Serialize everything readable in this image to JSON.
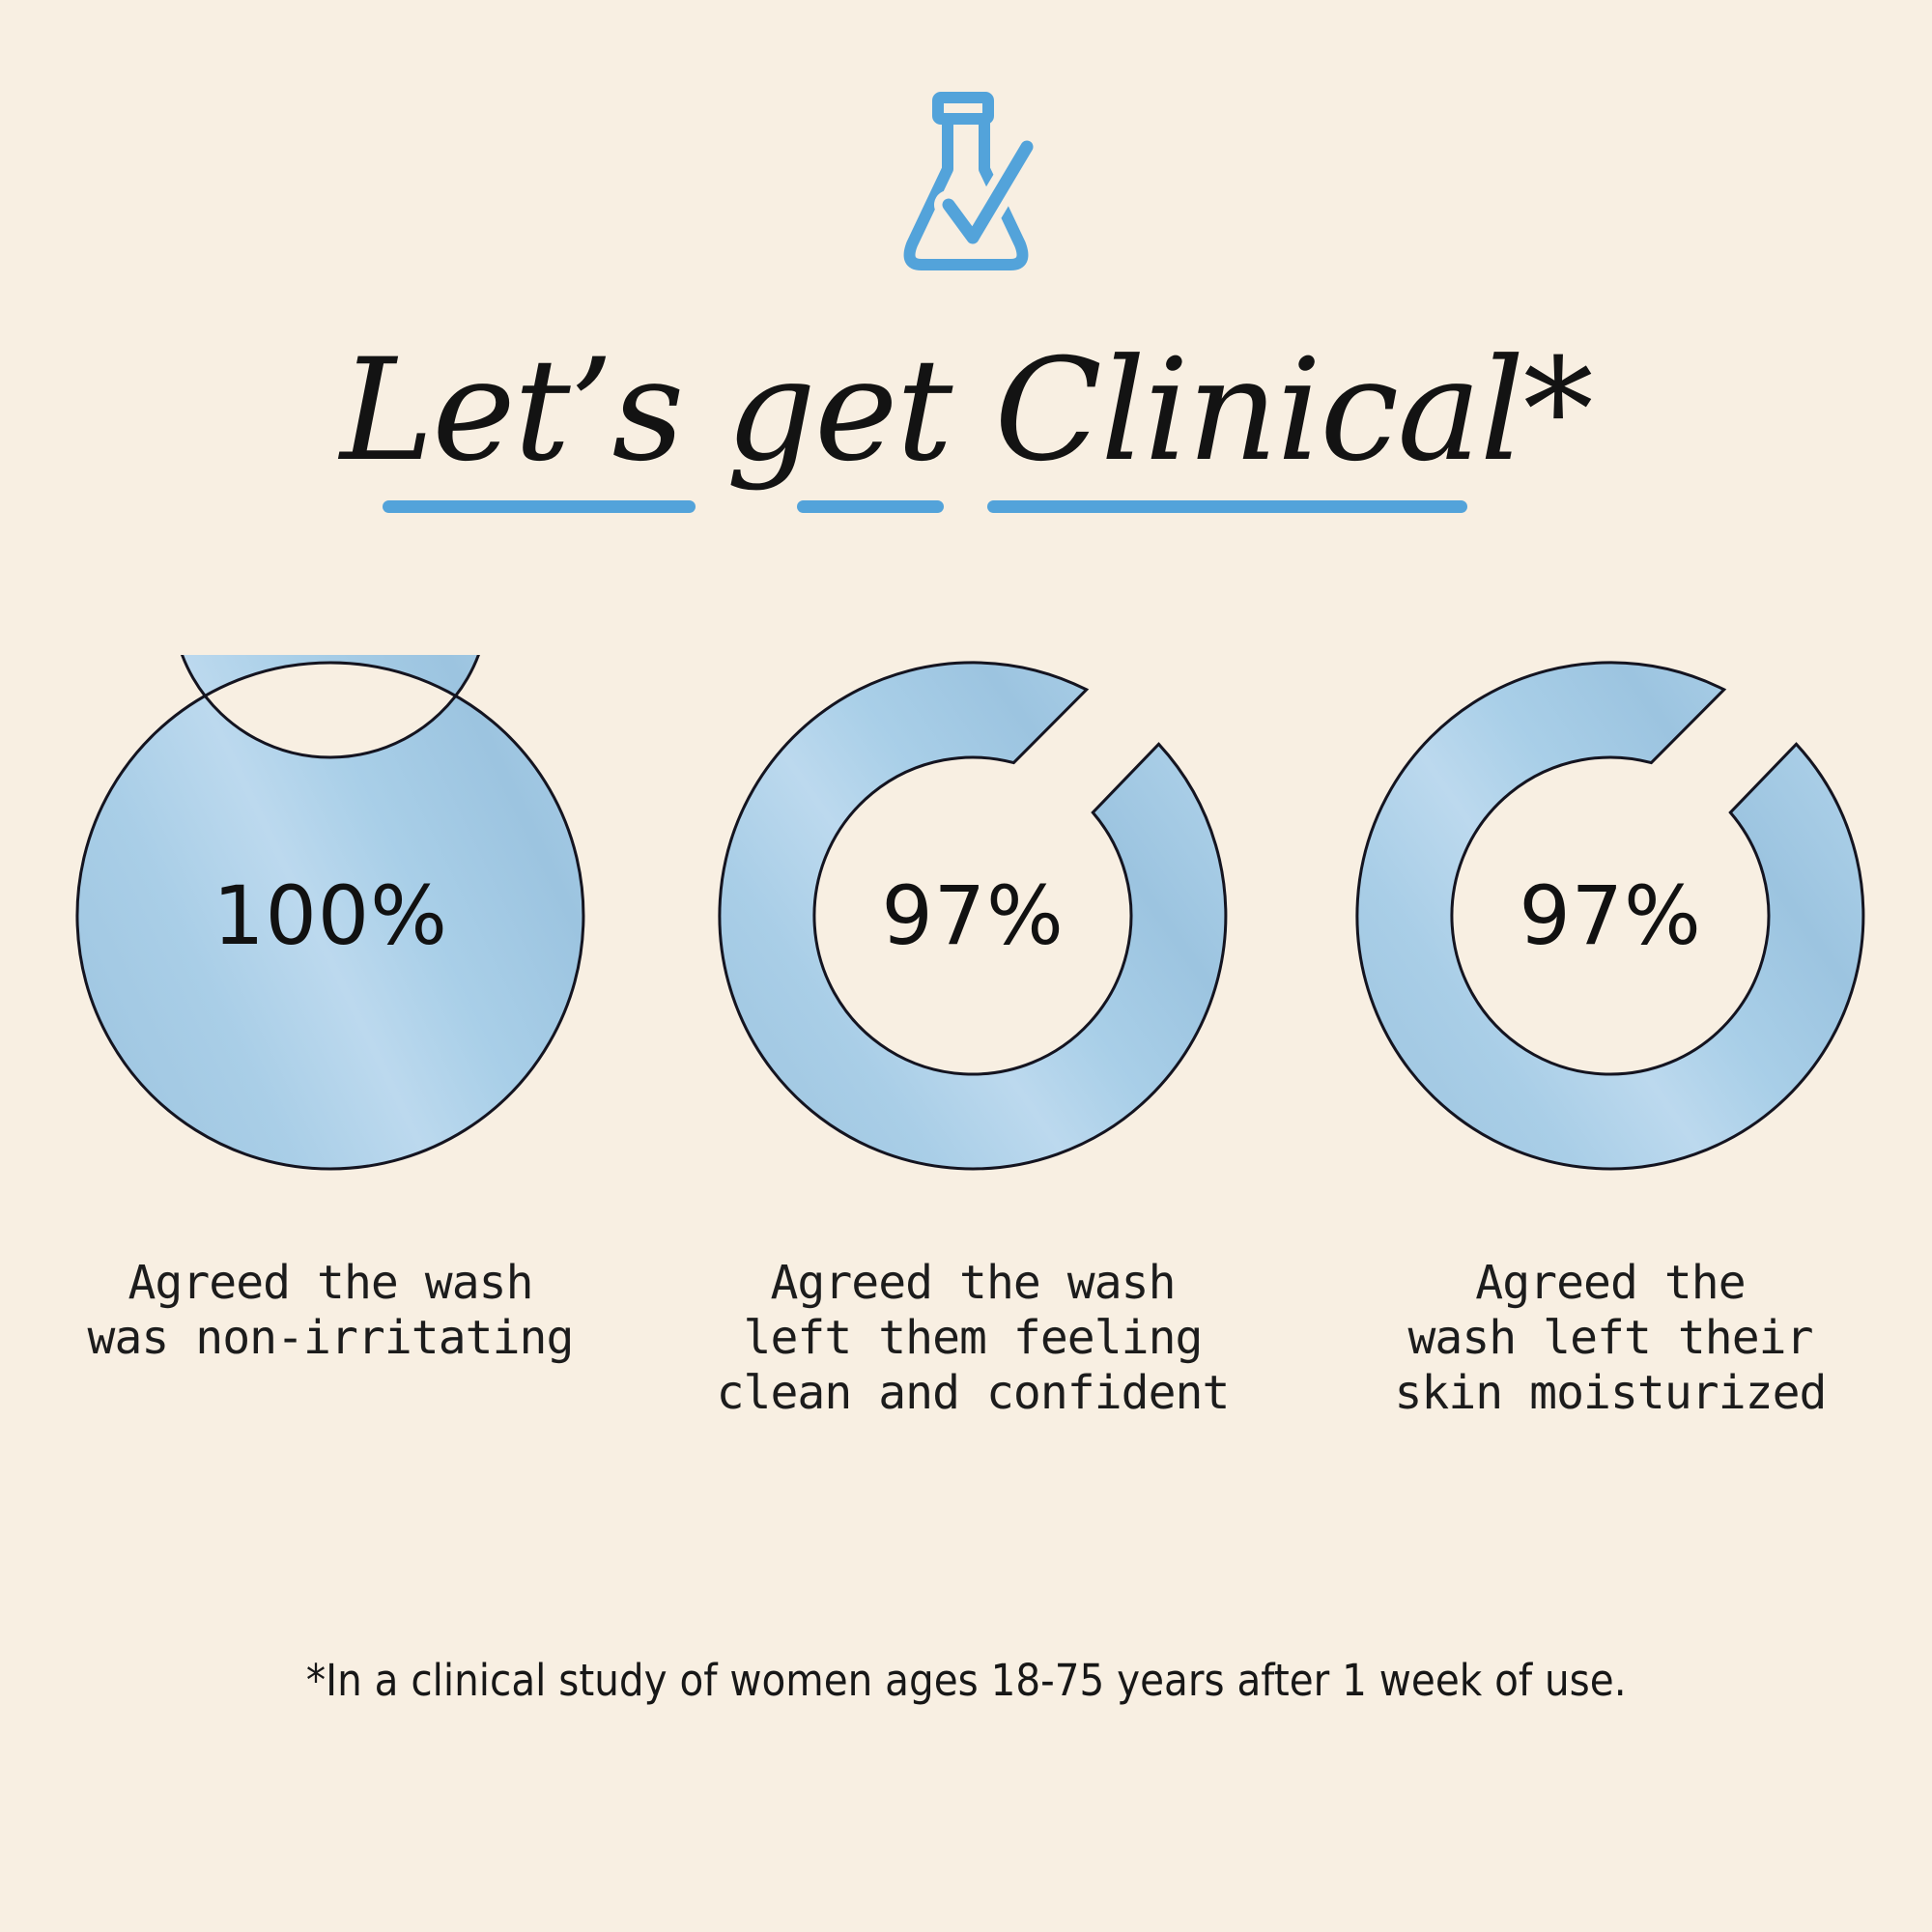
{
  "page": {
    "background_color": "#f8efe2",
    "accent_color": "#53a3da",
    "ring_fill_color": "#a9cee7",
    "outline_color": "#141420"
  },
  "header": {
    "icon": "flask-with-checkmark",
    "title": "Let’s get Clinical*"
  },
  "stats": [
    {
      "percent": "100%",
      "caption": "Agreed the wash\nwas non-irritating"
    },
    {
      "percent": "97%",
      "caption": "Agreed the wash\nleft them feeling\nclean and confident"
    },
    {
      "percent": "97%",
      "caption": "Agreed the\nwash left their\nskin moisturized"
    }
  ],
  "footnote": "*In a clinical study of women ages 18-75 years after 1 week of use.",
  "chart_data": {
    "type": "donut",
    "title": "Let’s get Clinical*",
    "unit": "percent",
    "series": [
      {
        "label": "Agreed the wash was non-irritating",
        "value": 100
      },
      {
        "label": "Agreed the wash left them feeling clean and confident",
        "value": 97
      },
      {
        "label": "Agreed the wash left their skin moisturized",
        "value": 97
      }
    ],
    "legend_position": "below-each-donut",
    "ring_color": "#a9cee7",
    "ring_outline": "#141420",
    "note": "*In a clinical study of women ages 18-75 years after 1 week of use."
  }
}
